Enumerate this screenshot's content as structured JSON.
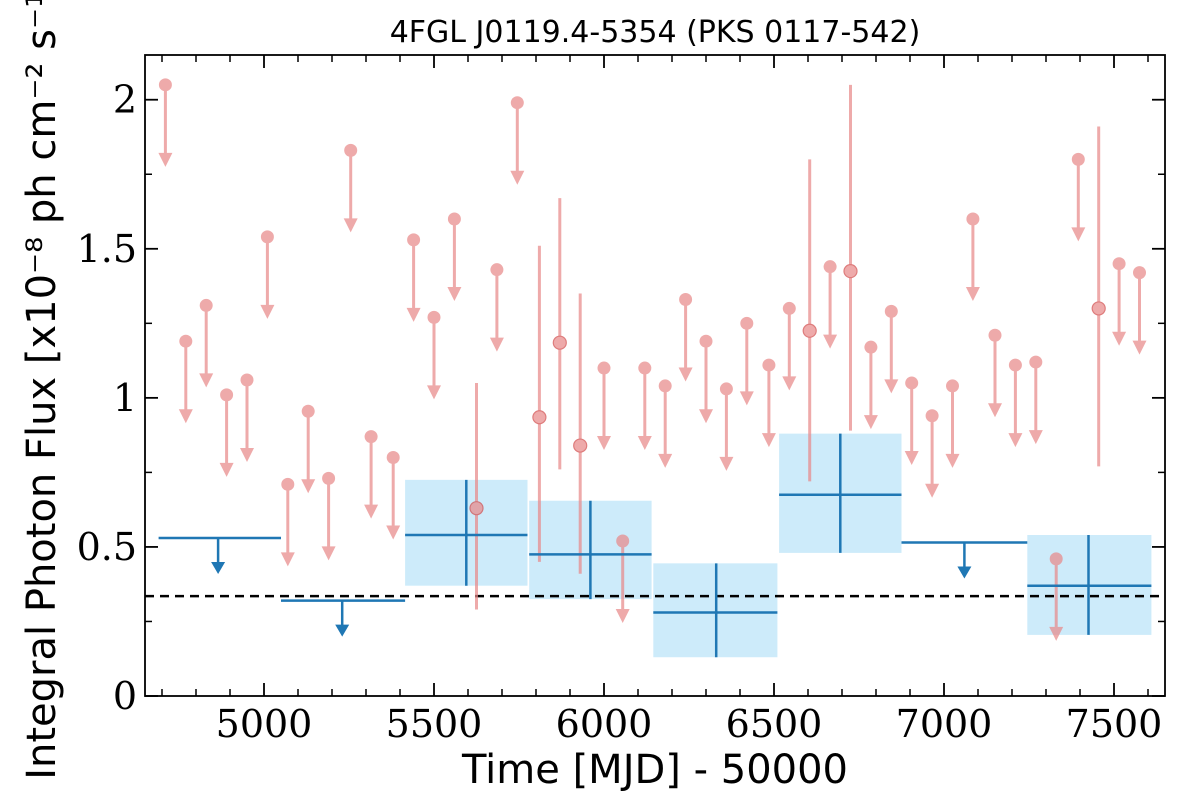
{
  "chart_data": {
    "type": "scatter",
    "title": "4FGL J0119.4-5354 (PKS 0117-542)",
    "xlabel": "Time [MJD] - 50000",
    "ylabel": "Integral Photon Flux [x10⁻⁸ ph cm⁻² s⁻¹]",
    "xlim": [
      4650,
      7650
    ],
    "ylim": [
      0,
      2.15
    ],
    "x_ticks": [
      5000,
      5500,
      6000,
      6500,
      7000,
      7500
    ],
    "x_tick_labels": [
      "5000",
      "5500",
      "6000",
      "6500",
      "7000",
      "7500"
    ],
    "y_ticks": [
      0,
      0.5,
      1,
      1.5,
      2
    ],
    "y_tick_labels": [
      "0",
      "0.5",
      "1",
      "1.5",
      "2"
    ],
    "grid": false,
    "reference_line": {
      "y": 0.335,
      "style": "dashed",
      "color": "#000000"
    },
    "colors": {
      "short_bins": "#e88a8a",
      "long_bins": "#1f77b4",
      "long_bins_box": "#cdebfa",
      "reference": "#000000"
    },
    "series": [
      {
        "kind": "upper_limits",
        "color": "#e88a8a",
        "points": [
          {
            "x": 4710,
            "y": 2.05
          },
          {
            "x": 4770,
            "y": 1.19
          },
          {
            "x": 4830,
            "y": 1.31
          },
          {
            "x": 4890,
            "y": 1.01
          },
          {
            "x": 4950,
            "y": 1.06
          },
          {
            "x": 5010,
            "y": 1.54
          },
          {
            "x": 5070,
            "y": 0.71
          },
          {
            "x": 5130,
            "y": 0.955
          },
          {
            "x": 5190,
            "y": 0.73
          },
          {
            "x": 5255,
            "y": 1.83
          },
          {
            "x": 5315,
            "y": 0.87
          },
          {
            "x": 5380,
            "y": 0.8
          },
          {
            "x": 5440,
            "y": 1.53
          },
          {
            "x": 5500,
            "y": 1.27
          },
          {
            "x": 5560,
            "y": 1.6
          },
          {
            "x": 5685,
            "y": 1.43
          },
          {
            "x": 5745,
            "y": 1.99
          },
          {
            "x": 6000,
            "y": 1.1
          },
          {
            "x": 6055,
            "y": 0.52
          },
          {
            "x": 6120,
            "y": 1.1
          },
          {
            "x": 6180,
            "y": 1.04
          },
          {
            "x": 6240,
            "y": 1.33
          },
          {
            "x": 6300,
            "y": 1.19
          },
          {
            "x": 6360,
            "y": 1.03
          },
          {
            "x": 6420,
            "y": 1.25
          },
          {
            "x": 6485,
            "y": 1.11
          },
          {
            "x": 6545,
            "y": 1.3
          },
          {
            "x": 6665,
            "y": 1.44
          },
          {
            "x": 6785,
            "y": 1.17
          },
          {
            "x": 6845,
            "y": 1.29
          },
          {
            "x": 6905,
            "y": 1.05
          },
          {
            "x": 6965,
            "y": 0.94
          },
          {
            "x": 7025,
            "y": 1.04
          },
          {
            "x": 7085,
            "y": 1.6
          },
          {
            "x": 7150,
            "y": 1.21
          },
          {
            "x": 7210,
            "y": 1.11
          },
          {
            "x": 7270,
            "y": 1.12
          },
          {
            "x": 7330,
            "y": 0.46
          },
          {
            "x": 7395,
            "y": 1.8
          },
          {
            "x": 7515,
            "y": 1.45
          },
          {
            "x": 7575,
            "y": 1.42
          }
        ]
      },
      {
        "kind": "detections",
        "color": "#e88a8a",
        "points": [
          {
            "x": 5625,
            "y": 0.63,
            "lo": 0.29,
            "hi": 1.05
          },
          {
            "x": 5810,
            "y": 0.935,
            "lo": 0.45,
            "hi": 1.51
          },
          {
            "x": 5870,
            "y": 1.185,
            "lo": 0.76,
            "hi": 1.67
          },
          {
            "x": 5930,
            "y": 0.84,
            "lo": 0.41,
            "hi": 1.35
          },
          {
            "x": 6605,
            "y": 1.225,
            "lo": 0.72,
            "hi": 1.8
          },
          {
            "x": 6725,
            "y": 1.425,
            "lo": 0.89,
            "hi": 2.05
          },
          {
            "x": 7455,
            "y": 1.3,
            "lo": 0.77,
            "hi": 1.91
          }
        ]
      },
      {
        "kind": "long_bin_detections",
        "color": "#1f77b4",
        "points": [
          {
            "x": 5595,
            "x0": 5415,
            "x1": 5775,
            "y": 0.54,
            "lo": 0.37,
            "hi": 0.725
          },
          {
            "x": 5960,
            "x0": 5780,
            "x1": 6140,
            "y": 0.475,
            "lo": 0.325,
            "hi": 0.655
          },
          {
            "x": 6330,
            "x0": 6145,
            "x1": 6510,
            "y": 0.28,
            "lo": 0.13,
            "hi": 0.445
          },
          {
            "x": 6695,
            "x0": 6515,
            "x1": 6875,
            "y": 0.675,
            "lo": 0.48,
            "hi": 0.88
          },
          {
            "x": 7425,
            "x0": 7245,
            "x1": 7610,
            "y": 0.37,
            "lo": 0.205,
            "hi": 0.54
          }
        ]
      },
      {
        "kind": "long_bin_upper_limits",
        "color": "#1f77b4",
        "points": [
          {
            "x": 4865,
            "x0": 4690,
            "x1": 5050,
            "y": 0.53
          },
          {
            "x": 5230,
            "x0": 5050,
            "x1": 5415,
            "y": 0.32
          },
          {
            "x": 7060,
            "x0": 6875,
            "x1": 7245,
            "y": 0.515
          }
        ]
      }
    ]
  }
}
